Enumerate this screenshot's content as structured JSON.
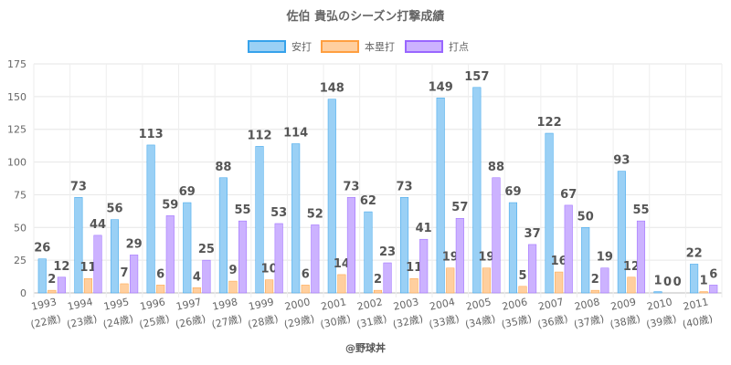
{
  "chart_data": {
    "type": "bar",
    "title": "佐伯 貴弘のシーズン打撃成績",
    "categories": [
      "1993",
      "1994",
      "1995",
      "1996",
      "1997",
      "1998",
      "1999",
      "2000",
      "2001",
      "2002",
      "2003",
      "2004",
      "2005",
      "2006",
      "2007",
      "2008",
      "2009",
      "2010",
      "2011"
    ],
    "ages": [
      "(22歳)",
      "(23歳)",
      "(24歳)",
      "(25歳)",
      "(26歳)",
      "(27歳)",
      "(28歳)",
      "(29歳)",
      "(30歳)",
      "(31歳)",
      "(32歳)",
      "(33歳)",
      "(34歳)",
      "(35歳)",
      "(36歳)",
      "(37歳)",
      "(38歳)",
      "(39歳)",
      "(40歳)"
    ],
    "series": [
      {
        "name": "安打",
        "color": "#9ad0f5",
        "border": "#36a2eb",
        "values": [
          26,
          73,
          56,
          113,
          69,
          88,
          112,
          114,
          148,
          62,
          73,
          149,
          157,
          69,
          122,
          50,
          93,
          1,
          22
        ]
      },
      {
        "name": "本塁打",
        "color": "#ffcf9f",
        "border": "#ff9f40",
        "values": [
          2,
          11,
          7,
          6,
          4,
          9,
          10,
          6,
          14,
          2,
          11,
          19,
          19,
          5,
          16,
          2,
          12,
          0,
          1
        ]
      },
      {
        "name": "打点",
        "color": "#ccb2ff",
        "border": "#9966ff",
        "values": [
          12,
          44,
          29,
          59,
          25,
          55,
          53,
          52,
          73,
          23,
          41,
          57,
          88,
          37,
          67,
          19,
          55,
          0,
          6
        ]
      }
    ],
    "ylim": [
      0,
      175
    ],
    "yticks": [
      0,
      25,
      50,
      75,
      100,
      125,
      150,
      175
    ],
    "grid": true,
    "legend": "top"
  },
  "footer": "@野球丼"
}
